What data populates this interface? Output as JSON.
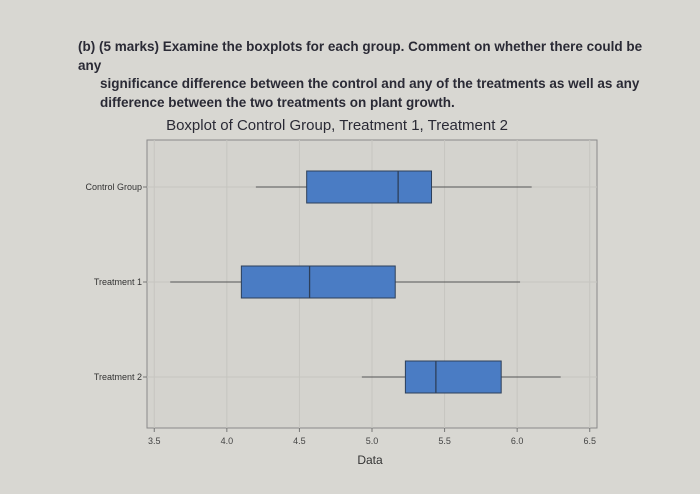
{
  "question": {
    "label": "(b)",
    "line1": "(5 marks) Examine the boxplots for each group. Comment on whether there could be any",
    "line2": "significance difference between the control and any of the treatments as well as any",
    "line3": "difference between the two treatments on plant growth."
  },
  "chart_data": {
    "type": "boxplot",
    "orientation": "horizontal",
    "title": "Boxplot of Control Group, Treatment 1, Treatment 2",
    "xlabel": "Data",
    "ylabel": "",
    "xlim": [
      3.45,
      6.55
    ],
    "xticks": [
      "3.5",
      "4.0",
      "4.5",
      "5.0",
      "5.5",
      "6.0",
      "6.5"
    ],
    "grid": true,
    "box_color": "#4a7cc4",
    "series": [
      {
        "name": "Control Group",
        "min": 4.2,
        "q1": 4.55,
        "median": 5.18,
        "q3": 5.41,
        "max": 6.1
      },
      {
        "name": "Treatment 1",
        "min": 3.61,
        "q1": 4.1,
        "median": 4.57,
        "q3": 5.16,
        "max": 6.02
      },
      {
        "name": "Treatment 2",
        "min": 4.93,
        "q1": 5.23,
        "median": 5.44,
        "q3": 5.89,
        "max": 6.3
      }
    ]
  }
}
